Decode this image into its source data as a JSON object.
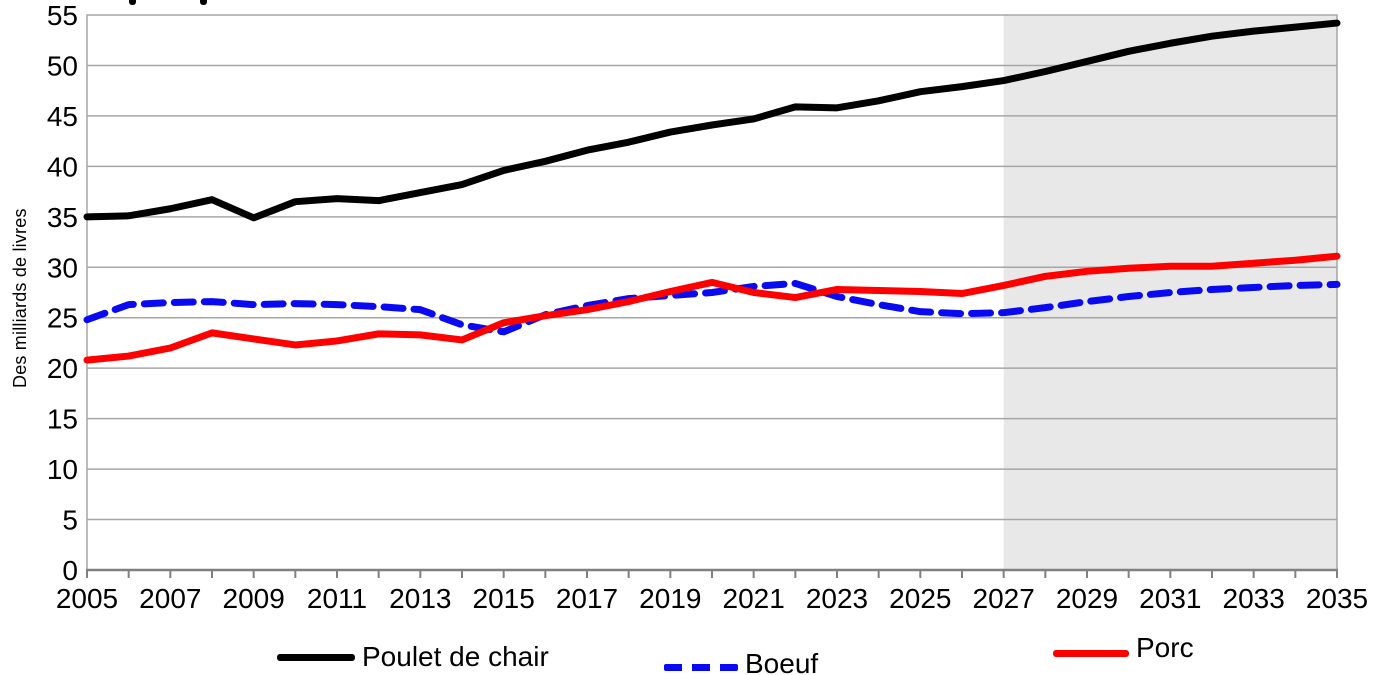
{
  "chart_data": {
    "type": "line",
    "title": "",
    "ylabel": "Des milliards de livres",
    "xlabel": "",
    "xlim": [
      2005,
      2035
    ],
    "ylim": [
      0,
      55
    ],
    "grid": "horizontal",
    "legend_position": "bottom",
    "projection_shading": {
      "from": 2027,
      "to": 2035,
      "color": "#E8E8E8"
    },
    "x": [
      2005,
      2006,
      2007,
      2008,
      2009,
      2010,
      2011,
      2012,
      2013,
      2014,
      2015,
      2016,
      2017,
      2018,
      2019,
      2020,
      2021,
      2022,
      2023,
      2024,
      2025,
      2026,
      2027,
      2028,
      2029,
      2030,
      2031,
      2032,
      2033,
      2034,
      2035
    ],
    "series": [
      {
        "name": "Poulet de chair",
        "color": "#000000",
        "style": "solid",
        "values": [
          35.0,
          35.1,
          35.8,
          36.7,
          34.9,
          36.5,
          36.8,
          36.6,
          37.4,
          38.2,
          39.6,
          40.5,
          41.6,
          42.4,
          43.4,
          44.1,
          44.7,
          45.9,
          45.8,
          46.5,
          47.4,
          47.9,
          48.5,
          49.4,
          50.4,
          51.4,
          52.2,
          52.9,
          53.4,
          53.8,
          54.2
        ]
      },
      {
        "name": "Boeuf",
        "color": "#0A0AF0",
        "style": "dashed",
        "values": [
          24.8,
          26.3,
          26.5,
          26.6,
          26.3,
          26.4,
          26.3,
          26.1,
          25.8,
          24.3,
          23.6,
          25.3,
          26.2,
          26.9,
          27.2,
          27.5,
          28.1,
          28.4,
          27.1,
          26.3,
          25.6,
          25.4,
          25.5,
          26.0,
          26.6,
          27.1,
          27.5,
          27.8,
          28.0,
          28.2,
          28.3
        ]
      },
      {
        "name": "Porc",
        "color": "#FF0000",
        "style": "solid",
        "values": [
          20.8,
          21.2,
          22.0,
          23.5,
          22.9,
          22.3,
          22.7,
          23.4,
          23.3,
          22.8,
          24.5,
          25.2,
          25.8,
          26.6,
          27.6,
          28.5,
          27.5,
          27.0,
          27.8,
          27.7,
          27.6,
          27.4,
          28.2,
          29.1,
          29.6,
          29.9,
          30.1,
          30.1,
          30.4,
          30.7,
          31.1
        ]
      }
    ]
  },
  "y_axis": {
    "title": "Des milliards de livres",
    "ticks": [
      0,
      5,
      10,
      15,
      20,
      25,
      30,
      35,
      40,
      45,
      50,
      55
    ]
  },
  "x_axis": {
    "tick_labels": [
      2005,
      2007,
      2009,
      2011,
      2013,
      2015,
      2017,
      2019,
      2021,
      2023,
      2025,
      2027,
      2029,
      2031,
      2033,
      2035
    ]
  },
  "style": {
    "gridline_color": "#A6A6A6",
    "axis_color": "#808080",
    "text_color": "#000000",
    "background_color": "#FFFFFF"
  }
}
